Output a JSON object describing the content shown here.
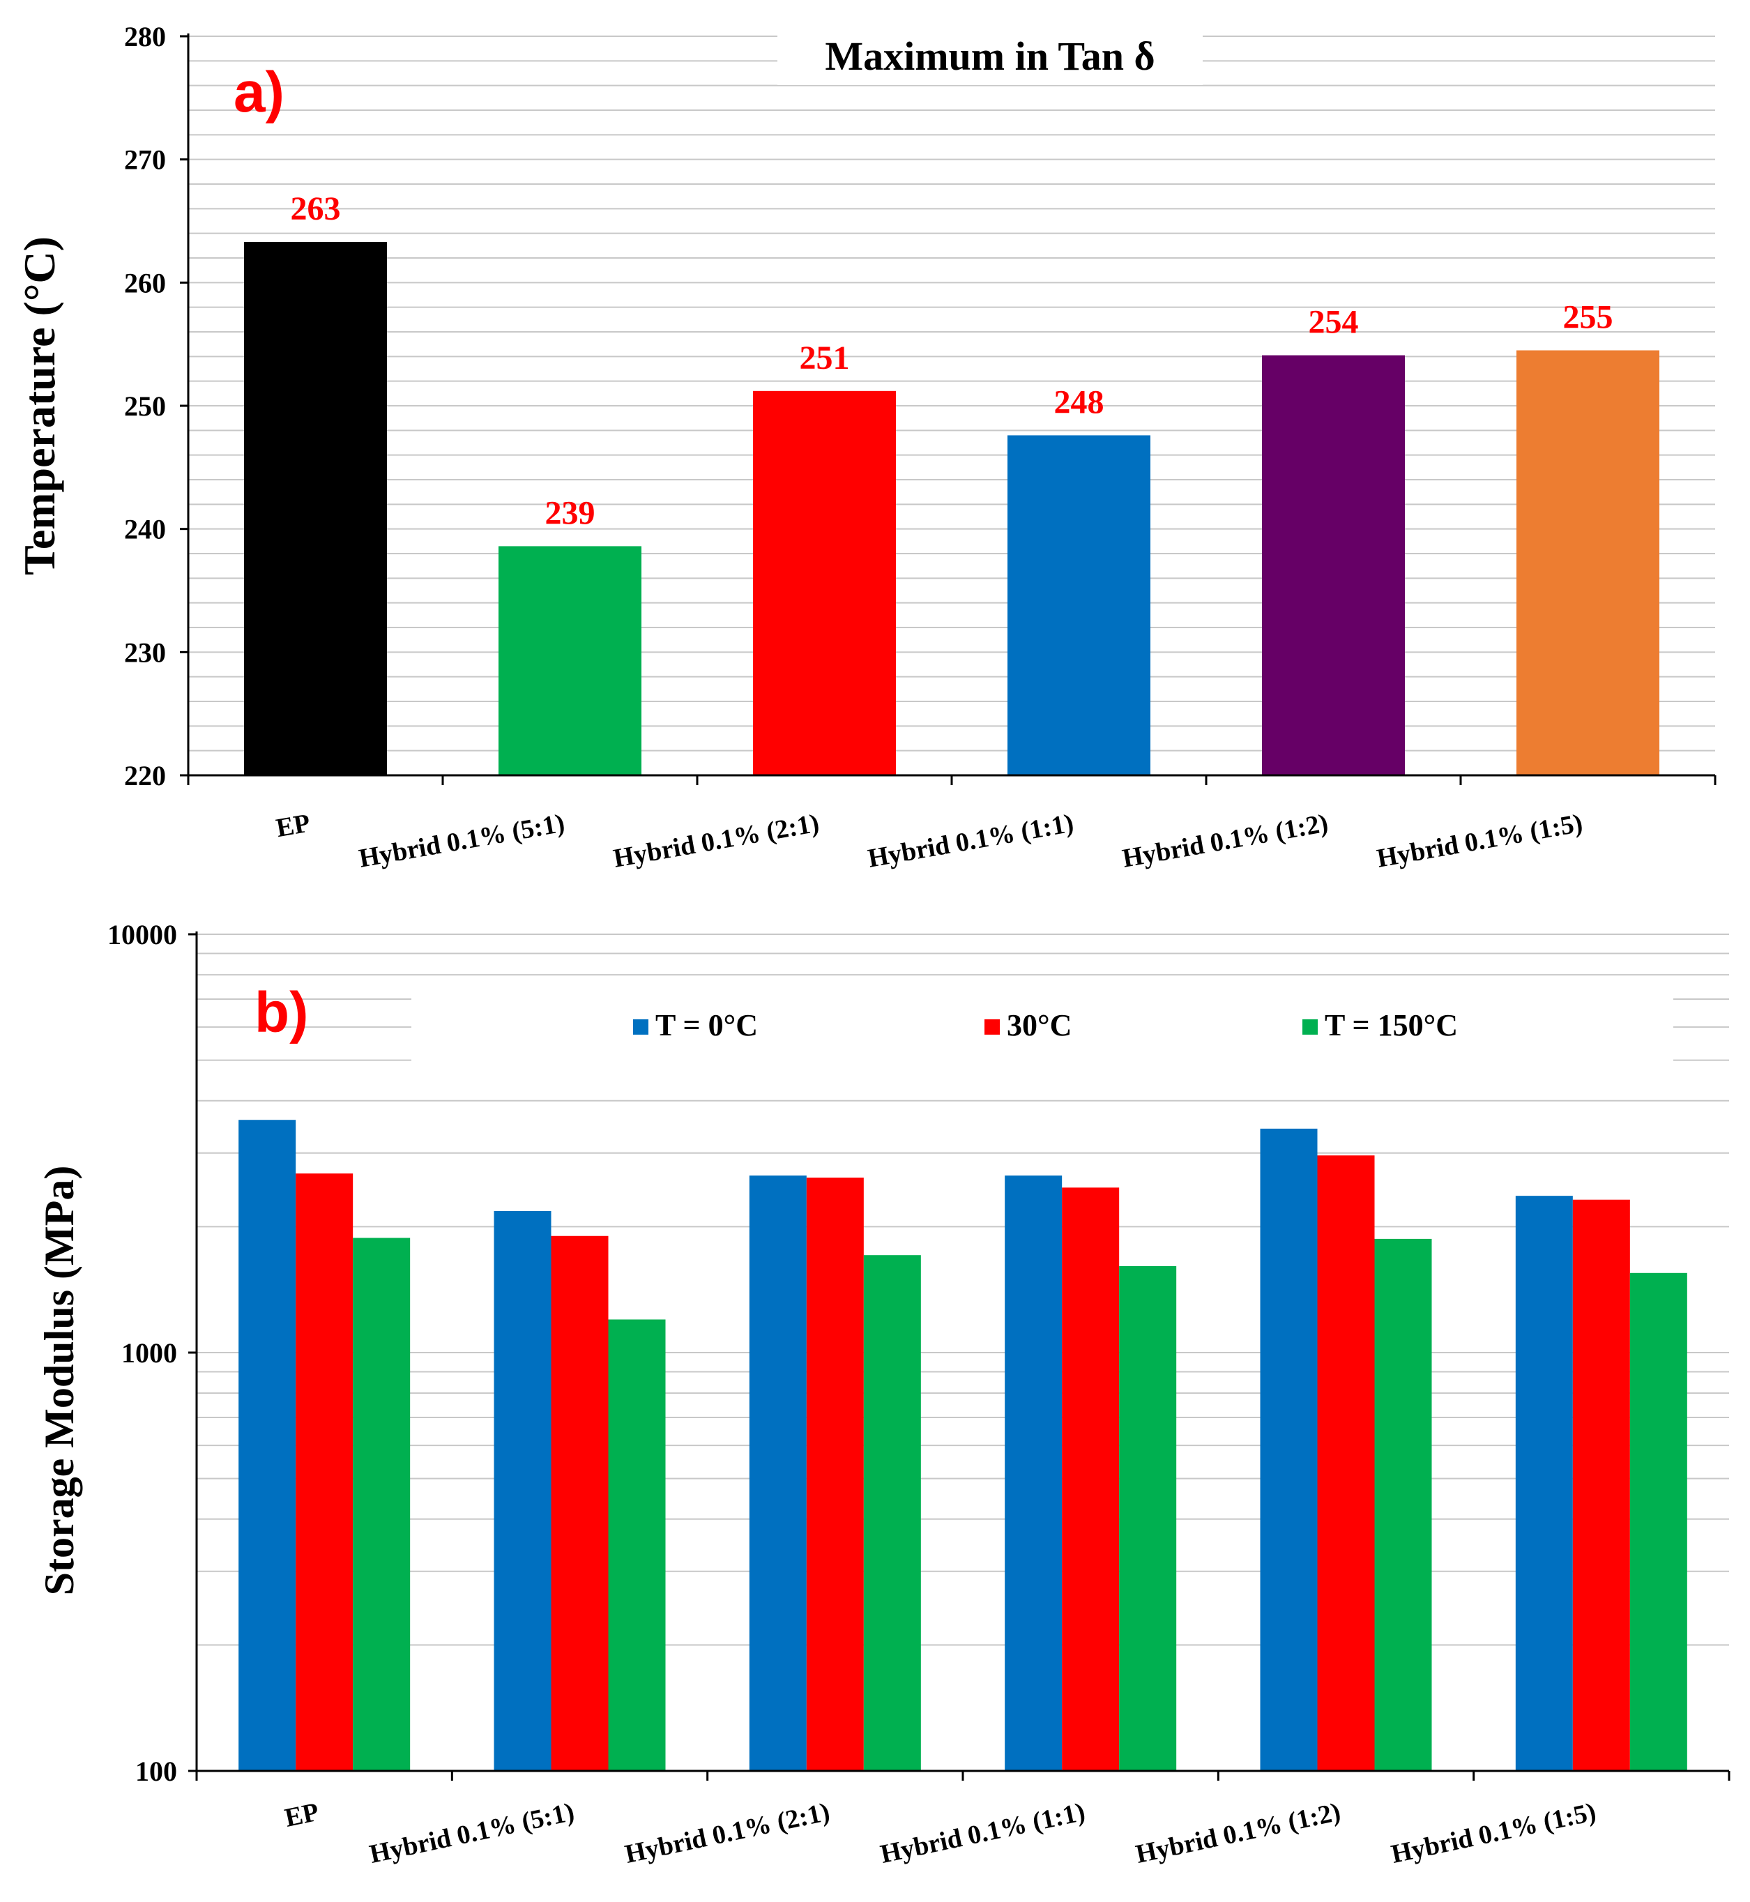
{
  "chart_data": [
    {
      "panel": "a)",
      "type": "bar",
      "title": "Maximum in Tan δ",
      "xlabel": "",
      "ylabel": "Temperature (°C)",
      "ylim": [
        220,
        280
      ],
      "yticks": [
        220,
        230,
        240,
        250,
        260,
        270,
        280
      ],
      "grid": true,
      "categories": [
        "EP",
        "Hybrid 0.1% (5:1)",
        "Hybrid 0.1% (2:1)",
        "Hybrid 0.1% (1:1)",
        "Hybrid 0.1% (1:2)",
        "Hybrid 0.1% (1:5)"
      ],
      "values": [
        263.3,
        238.6,
        251.2,
        247.6,
        254.1,
        254.5
      ],
      "data_labels": [
        "263",
        "239",
        "251",
        "248",
        "254",
        "255"
      ],
      "bar_colors": [
        "#000000",
        "#00b050",
        "#ff0000",
        "#0070c0",
        "#660066",
        "#ed7d31"
      ],
      "label_color": "#ff0000"
    },
    {
      "panel": "b)",
      "type": "bar",
      "scale": "log",
      "xlabel": "",
      "ylabel": "Storage Modulus (MPa)",
      "ylim": [
        100,
        10000
      ],
      "yticks": [
        100,
        1000,
        10000
      ],
      "grid": true,
      "legend_position": "top",
      "categories": [
        "EP",
        "Hybrid 0.1% (5:1)",
        "Hybrid 0.1% (2:1)",
        "Hybrid 0.1% (1:1)",
        "Hybrid 0.1% (1:2)",
        "Hybrid 0.1% (1:5)"
      ],
      "series": [
        {
          "name": "T = 0°C",
          "color": "#0070c0",
          "values": [
            3600,
            2180,
            2650,
            2650,
            3430,
            2370
          ]
        },
        {
          "name": "30°C",
          "color": "#ff0000",
          "values": [
            2680,
            1900,
            2620,
            2480,
            2960,
            2320
          ]
        },
        {
          "name": "T = 150°C",
          "color": "#00b050",
          "values": [
            1880,
            1200,
            1710,
            1610,
            1870,
            1550
          ]
        }
      ]
    }
  ]
}
